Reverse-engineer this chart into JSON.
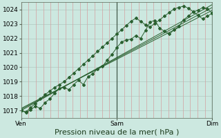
{
  "title": "Pression niveau de la mer( hPa )",
  "bg_color": "#cce8e0",
  "plot_bg_color": "#cce8e0",
  "grid_color_h": "#b0c8c0",
  "grid_color_v": "#d4a0a0",
  "line_color": "#2a6030",
  "marker_color": "#2a6030",
  "ylim": [
    1016.5,
    1024.5
  ],
  "yticks": [
    1017,
    1018,
    1019,
    1020,
    1021,
    1022,
    1023,
    1024
  ],
  "xtick_labels": [
    "Ven",
    "Sam",
    "Dim"
  ],
  "xlabel": "Pression niveau de la mer( hPa )",
  "vline_color": "#405848",
  "jagged_series": [
    [
      1017.0,
      1016.85,
      1017.05,
      1017.3,
      1017.15,
      1017.55,
      1017.8,
      1018.2,
      1018.55,
      1018.6,
      1018.45,
      1018.8,
      1019.1,
      1018.8,
      1019.35,
      1019.55,
      1019.9,
      1020.05,
      1020.5,
      1020.9,
      1021.35,
      1021.75,
      1021.9,
      1021.95,
      1022.2,
      1022.0,
      1022.55,
      1023.15,
      1023.25,
      1022.7,
      1022.5,
      1022.3,
      1022.6,
      1022.85,
      1023.3,
      1023.55,
      1023.85,
      1023.95,
      1024.15,
      1024.05,
      1023.75
    ],
    [
      1017.0,
      1016.9,
      1017.2,
      1017.5,
      1017.8,
      1018.1,
      1018.35,
      1018.6,
      1018.8,
      1019.0,
      1019.3,
      1019.6,
      1019.9,
      1020.2,
      1020.5,
      1020.8,
      1021.1,
      1021.4,
      1021.7,
      1022.0,
      1022.3,
      1022.6,
      1022.9,
      1023.2,
      1023.4,
      1023.2,
      1022.95,
      1022.8,
      1023.05,
      1023.3,
      1023.55,
      1023.8,
      1024.05,
      1024.15,
      1024.25,
      1024.1,
      1023.85,
      1023.6,
      1023.35,
      1023.55,
      1023.75
    ]
  ],
  "smooth_lines": [
    [
      [
        0,
        40
      ],
      [
        1017.0,
        1024.3
      ]
    ],
    [
      [
        0,
        40
      ],
      [
        1017.05,
        1024.1
      ]
    ],
    [
      [
        0,
        40
      ],
      [
        1017.1,
        1023.9
      ]
    ]
  ],
  "n_points": 41,
  "tick_fontsize": 6.5,
  "xlabel_fontsize": 8
}
